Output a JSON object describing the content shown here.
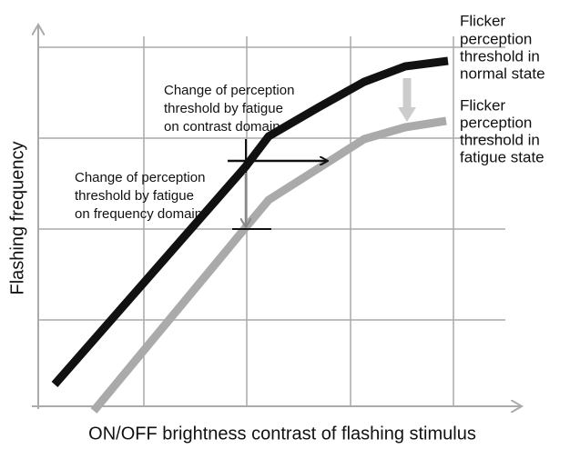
{
  "axes": {
    "y_label": "Flashing frequency",
    "x_label": "ON/OFF brightness contrast of flashing stimulus"
  },
  "curves": [
    {
      "label_lines": [
        "Flicker",
        "perception",
        "threshold in",
        "normal state"
      ]
    },
    {
      "label_lines": [
        "Flicker",
        "perception",
        "threshold in",
        "fatigue state"
      ]
    }
  ],
  "annotations": [
    {
      "lines": [
        "Change of perception",
        "threshold by fatigue",
        "on contrast domain"
      ]
    },
    {
      "lines": [
        "Change of perception",
        "threshold by fatigue",
        "on frequency domain"
      ]
    }
  ]
}
